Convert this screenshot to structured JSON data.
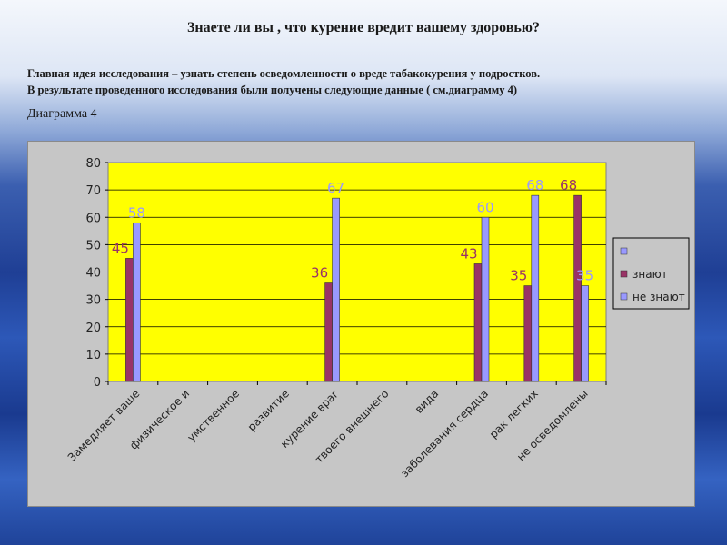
{
  "slide": {
    "title": "Знаете ли вы , что курение вредит вашему здоровью?",
    "lead_line1": "Главная идея исследования – узнать степень осведомленности о вреде табакокурения у подростков.",
    "lead_line2": "В результате проведенного исследования были получены следующие данные ( см.диаграмму 4)",
    "caption": "Диаграмма 4"
  },
  "colors": {
    "plot_background": "#ffff00",
    "series_know": "#993366",
    "series_dont_know": "#9999ff",
    "chart_area": "#c6c6c6"
  },
  "chart_data": {
    "type": "bar",
    "categories": [
      "Замедляет ваше",
      "физическое и",
      "умственное",
      "развитие",
      "курение враг",
      "твоего внешнего",
      "вида",
      "заболевания сердца",
      "рак легких",
      "не осведомлены"
    ],
    "series": [
      {
        "name": "",
        "values": [
          null,
          null,
          null,
          null,
          null,
          null,
          null,
          null,
          null,
          null
        ]
      },
      {
        "name": "знают",
        "values": [
          45,
          null,
          null,
          null,
          36,
          null,
          null,
          43,
          35,
          68
        ]
      },
      {
        "name": "не знают",
        "values": [
          58,
          null,
          null,
          null,
          67,
          null,
          null,
          60,
          68,
          35
        ]
      }
    ],
    "yticks": [
      "0",
      "10",
      "20",
      "30",
      "40",
      "50",
      "60",
      "70",
      "80"
    ],
    "ylim": [
      0,
      80
    ],
    "grid": true,
    "legend_position": "right"
  }
}
